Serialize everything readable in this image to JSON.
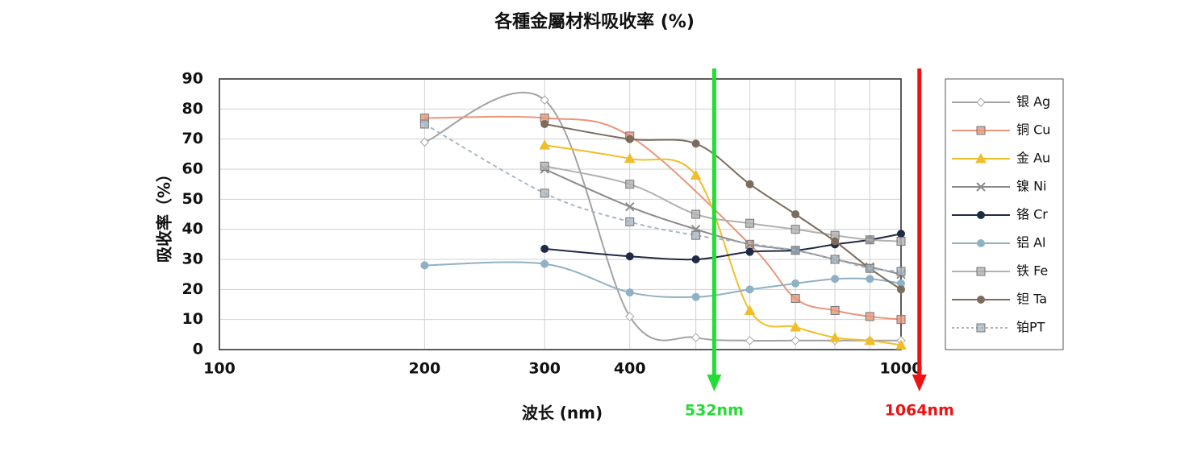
{
  "chart_data": {
    "type": "line",
    "title": "各種金屬材料吸收率 (%)",
    "x_label": "波长 (nm)",
    "y_label": "吸收率（%）",
    "log_x": true,
    "grid": true,
    "xlim": [
      100,
      1000
    ],
    "xticks": [
      100,
      200,
      300,
      400,
      1000
    ],
    "xminor_ticks": [
      500,
      600,
      700,
      800,
      900
    ],
    "ylim": [
      0,
      90
    ],
    "yticks": [
      0,
      10,
      20,
      30,
      40,
      50,
      60,
      70,
      80,
      90
    ],
    "legend": "right",
    "series": [
      {
        "name": "银 Ag",
        "color": "#a3a3a3",
        "marker": "diamond",
        "x": [
          200,
          300,
          400,
          500,
          600,
          700,
          800,
          900,
          1000
        ],
        "values": [
          69,
          83,
          11,
          4,
          3,
          3,
          3,
          3,
          3
        ]
      },
      {
        "name": "铜 Cu",
        "color": "#e9967a",
        "marker": "square",
        "x": [
          200,
          300,
          400,
          600,
          700,
          800,
          900,
          1000
        ],
        "values": [
          77,
          77,
          71,
          35,
          17,
          13,
          11,
          10
        ]
      },
      {
        "name": "金 Au",
        "color": "#f0be2a",
        "marker": "triangle",
        "x": [
          300,
          400,
          500,
          600,
          700,
          800,
          900,
          1000
        ],
        "values": [
          68,
          63.5,
          58,
          13,
          7.5,
          4,
          3,
          1.5
        ]
      },
      {
        "name": "镍 Ni",
        "color": "#8a8a8a",
        "marker": "x",
        "x": [
          300,
          400,
          500,
          600,
          700,
          800,
          900,
          1000
        ],
        "values": [
          60,
          47.5,
          40,
          35,
          33,
          30,
          27.5,
          25
        ]
      },
      {
        "name": "铬 Cr",
        "color": "#1f2a44",
        "marker": "circle",
        "x": [
          300,
          400,
          500,
          600,
          700,
          800,
          900,
          1000
        ],
        "values": [
          33.5,
          31,
          30,
          32.5,
          33,
          35,
          36.5,
          38.5
        ]
      },
      {
        "name": "铝 Al",
        "color": "#8fb1c4",
        "marker": "circle",
        "x": [
          200,
          300,
          400,
          500,
          600,
          700,
          800,
          900,
          1000
        ],
        "values": [
          28,
          28.5,
          19,
          17.5,
          20,
          22,
          23.5,
          23.5,
          22
        ]
      },
      {
        "name": "铁 Fe",
        "color": "#b0b0b0",
        "marker": "square",
        "x": [
          300,
          400,
          500,
          600,
          700,
          800,
          900,
          1000
        ],
        "values": [
          61,
          55,
          45,
          42,
          40,
          38,
          36.5,
          36
        ]
      },
      {
        "name": "钽 Ta",
        "color": "#7b6c5c",
        "marker": "circle",
        "x": [
          300,
          400,
          500,
          600,
          700,
          800,
          900,
          1000
        ],
        "values": [
          75,
          70,
          68.5,
          55,
          45,
          36,
          27,
          20
        ]
      },
      {
        "name": "铂PT",
        "color": "#a9b6c2",
        "marker": "square",
        "dashed": true,
        "x": [
          200,
          300,
          400,
          500,
          700,
          800,
          900,
          1000
        ],
        "values": [
          75,
          52,
          42.5,
          38,
          33,
          30,
          27,
          26
        ]
      }
    ],
    "annotations": [
      {
        "label": "532nm",
        "x": 532,
        "color": "#22dd33"
      },
      {
        "label": "1064nm",
        "x": 1064,
        "color": "#ee1111"
      }
    ]
  }
}
